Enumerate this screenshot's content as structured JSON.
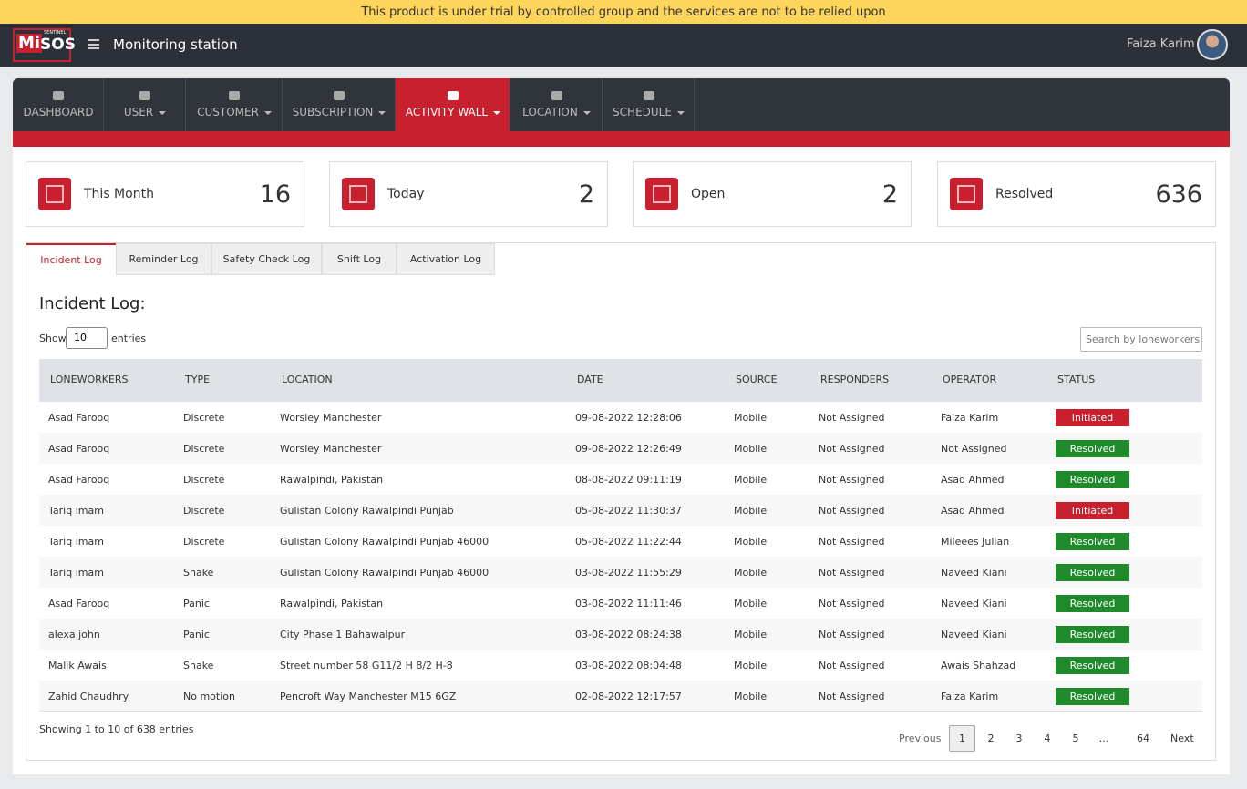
{
  "banner": "This product is under trial by controlled group and the services are not to be relied upon",
  "header": {
    "logo": {
      "prefix": "Mi",
      "name": "SOS",
      "tagline": "SENTINEL"
    },
    "title": "Monitoring station",
    "user": "Faiza Karim"
  },
  "nav": {
    "active": 4,
    "items": [
      {
        "label": "DASHBOARD",
        "dropdown": false
      },
      {
        "label": "USER",
        "dropdown": true
      },
      {
        "label": "CUSTOMER",
        "dropdown": true
      },
      {
        "label": "SUBSCRIPTION",
        "dropdown": true
      },
      {
        "label": "ACTIVITY WALL",
        "dropdown": true
      },
      {
        "label": "LOCATION",
        "dropdown": true
      },
      {
        "label": "SCHEDULE",
        "dropdown": true
      }
    ]
  },
  "stats": [
    {
      "label": "This Month",
      "value": 16
    },
    {
      "label": "Today",
      "value": 2
    },
    {
      "label": "Open",
      "value": 2
    },
    {
      "label": "Resolved",
      "value": 636
    }
  ],
  "tabs": {
    "active": 0,
    "items": [
      "Incident Log",
      "Reminder Log",
      "Safety Check Log",
      "Shift Log",
      "Activation Log"
    ]
  },
  "section_title": "Incident Log:",
  "length_menu": {
    "before": "Show",
    "selected": "10",
    "after": "entries"
  },
  "search_placeholder": "Search by loneworkers",
  "table": {
    "columns": [
      "LONEWORKERS",
      "TYPE",
      "LOCATION",
      "DATE",
      "SOURCE",
      "RESPONDERS",
      "OPERATOR",
      "STATUS"
    ],
    "status_colors": {
      "Initiated": "#c8202f",
      "Resolved": "#1f8a2c"
    },
    "rows": [
      [
        "Asad Farooq",
        "Discrete",
        "Worsley Manchester",
        "09-08-2022 12:28:06",
        "Mobile",
        "Not Assigned",
        "Faiza Karim",
        "Initiated"
      ],
      [
        "Asad Farooq",
        "Discrete",
        "Worsley Manchester",
        "09-08-2022 12:26:49",
        "Mobile",
        "Not Assigned",
        "Not Assigned",
        "Resolved"
      ],
      [
        "Asad Farooq",
        "Discrete",
        "Rawalpindi, Pakistan",
        "08-08-2022 09:11:19",
        "Mobile",
        "Not Assigned",
        "Asad Ahmed",
        "Resolved"
      ],
      [
        "Tariq imam",
        "Discrete",
        "Gulistan Colony Rawalpindi Punjab",
        "05-08-2022 11:30:37",
        "Mobile",
        "Not Assigned",
        "Asad Ahmed",
        "Initiated"
      ],
      [
        "Tariq imam",
        "Discrete",
        "Gulistan Colony Rawalpindi Punjab 46000",
        "05-08-2022 11:22:44",
        "Mobile",
        "Not Assigned",
        "Mileees Julian",
        "Resolved"
      ],
      [
        "Tariq imam",
        "Shake",
        "Gulistan Colony Rawalpindi Punjab 46000",
        "03-08-2022 11:55:29",
        "Mobile",
        "Not Assigned",
        "Naveed Kiani",
        "Resolved"
      ],
      [
        "Asad Farooq",
        "Panic",
        "Rawalpindi, Pakistan",
        "03-08-2022 11:11:46",
        "Mobile",
        "Not Assigned",
        "Naveed Kiani",
        "Resolved"
      ],
      [
        "alexa john",
        "Panic",
        "City Phase 1 Bahawalpur",
        "03-08-2022 08:24:38",
        "Mobile",
        "Not Assigned",
        "Naveed Kiani",
        "Resolved"
      ],
      [
        "Malik Awais",
        "Shake",
        "Street number 58 G11/2 H 8/2 H-8",
        "03-08-2022 08:04:48",
        "Mobile",
        "Not Assigned",
        "Awais Shahzad",
        "Resolved"
      ],
      [
        "Zahid Chaudhry",
        "No motion",
        "Pencroft Way Manchester M15 6GZ",
        "02-08-2022 12:17:57",
        "Mobile",
        "Not Assigned",
        "Faiza Karim",
        "Resolved"
      ]
    ]
  },
  "footer": {
    "info": "Showing 1 to 10 of 638 entries",
    "pagination": {
      "previous": "Previous",
      "pages": [
        "1",
        "2",
        "3",
        "4",
        "5",
        "…",
        "64"
      ],
      "current": 0,
      "next": "Next"
    }
  }
}
